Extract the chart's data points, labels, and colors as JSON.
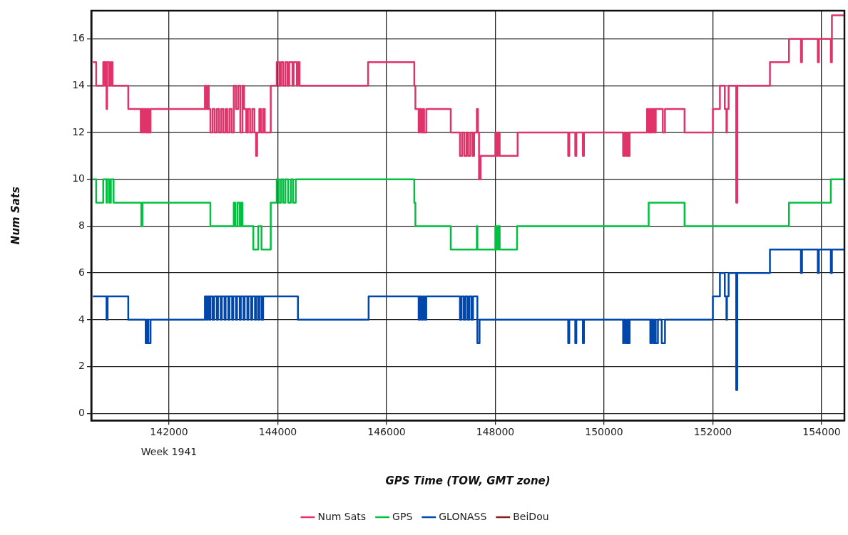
{
  "chart_data": {
    "type": "step",
    "xlabel": "GPS Time (TOW, GMT zone)",
    "ylabel": "Num Sats",
    "annotations": [
      "Week 1941"
    ],
    "xlim": [
      140570,
      154420
    ],
    "xticks": [
      142000,
      144000,
      146000,
      148000,
      150000,
      152000,
      154000
    ],
    "ylim": [
      -0.3,
      17.2
    ],
    "yticks": [
      0,
      2,
      4,
      6,
      8,
      10,
      12,
      14,
      16
    ],
    "grid": true,
    "legend": "bottom",
    "line_style": "solid",
    "marker": "none",
    "series": [
      {
        "name": "Num Sats",
        "color": "#e0336a",
        "x": [
          140600,
          140660,
          140790,
          140820,
          140830,
          140850,
          140860,
          140900,
          140930,
          140960,
          141250,
          141480,
          141500,
          141530,
          141550,
          141580,
          141610,
          141630,
          141660,
          142660,
          142680,
          142710,
          142730,
          142760,
          142800,
          142840,
          142880,
          142920,
          142960,
          143000,
          143040,
          143070,
          143110,
          143150,
          143190,
          143230,
          143270,
          143310,
          143350,
          143380,
          143420,
          143450,
          143490,
          143530,
          143570,
          143600,
          143620,
          143660,
          143690,
          143730,
          143760,
          143870,
          143980,
          144030,
          144060,
          144100,
          144140,
          144180,
          144210,
          144270,
          144290,
          144350,
          144370,
          144400,
          145660,
          146510,
          146530,
          146590,
          146610,
          146640,
          146670,
          146690,
          146730,
          147180,
          147350,
          147390,
          147430,
          147470,
          147500,
          147540,
          147580,
          147610,
          147660,
          147680,
          147700,
          147730,
          148000,
          148030,
          148050,
          148080,
          148410,
          149340,
          149360,
          149470,
          149490,
          149610,
          149630,
          150350,
          150370,
          150400,
          150430,
          150450,
          150470,
          150790,
          150820,
          150850,
          150870,
          150900,
          150930,
          150950,
          151080,
          151120,
          151480,
          152000,
          152130,
          152220,
          152250,
          152260,
          152290,
          152430,
          152450,
          153050,
          153400,
          153620,
          153640,
          153930,
          153950,
          154170,
          154190,
          154410
        ],
        "values": [
          15,
          14,
          15,
          14,
          15,
          13,
          15,
          14,
          15,
          14,
          13,
          12,
          13,
          12,
          13,
          12,
          13,
          12,
          13,
          14,
          13,
          14,
          13,
          12,
          13,
          12,
          13,
          12,
          13,
          12,
          13,
          12,
          13,
          12,
          14,
          13,
          14,
          12,
          14,
          13,
          12,
          13,
          12,
          13,
          12,
          11,
          12,
          13,
          12,
          13,
          12,
          14,
          15,
          14,
          15,
          14,
          15,
          14,
          15,
          14,
          15,
          14,
          15,
          14,
          15,
          14,
          13,
          12,
          13,
          12,
          13,
          12,
          13,
          12,
          11,
          12,
          11,
          12,
          11,
          12,
          11,
          12,
          13,
          12,
          10,
          11,
          12,
          11,
          12,
          11,
          12,
          11,
          12,
          11,
          12,
          11,
          12,
          11,
          12,
          11,
          12,
          11,
          12,
          13,
          12,
          13,
          12,
          13,
          12,
          13,
          12,
          13,
          12,
          13,
          14,
          13,
          12,
          13,
          14,
          9,
          14,
          15,
          16,
          15,
          16,
          15,
          16,
          15,
          17,
          17
        ]
      },
      {
        "name": "GPS",
        "color": "#00c040",
        "x": [
          140600,
          140660,
          140790,
          140850,
          140860,
          140900,
          140930,
          140980,
          141490,
          141510,
          142760,
          143190,
          143220,
          143260,
          143300,
          143320,
          143350,
          143550,
          143640,
          143700,
          143870,
          143980,
          144020,
          144060,
          144100,
          144140,
          144190,
          144240,
          144280,
          144330,
          146510,
          146530,
          147180,
          147660,
          147670,
          148000,
          148030,
          148050,
          148080,
          148400,
          150820,
          151480,
          153400,
          154170,
          154410
        ],
        "values": [
          10,
          9,
          10,
          9,
          10,
          9,
          10,
          9,
          8,
          9,
          8,
          9,
          8,
          9,
          8,
          9,
          8,
          7,
          8,
          7,
          9,
          10,
          9,
          10,
          9,
          10,
          9,
          10,
          9,
          10,
          9,
          8,
          7,
          8,
          7,
          8,
          7,
          8,
          7,
          8,
          9,
          8,
          9,
          10,
          10
        ]
      },
      {
        "name": "GLONASS",
        "color": "#0047ab",
        "x": [
          140600,
          140850,
          140870,
          141250,
          141570,
          141600,
          141620,
          141660,
          142660,
          142690,
          142710,
          142740,
          142760,
          142800,
          142830,
          142880,
          142900,
          142950,
          142970,
          143020,
          143040,
          143090,
          143110,
          143160,
          143180,
          143230,
          143250,
          143300,
          143320,
          143370,
          143390,
          143440,
          143460,
          143510,
          143530,
          143580,
          143600,
          143640,
          143660,
          143700,
          143730,
          144370,
          145670,
          146590,
          146610,
          146640,
          146670,
          146700,
          146730,
          147350,
          147380,
          147420,
          147450,
          147490,
          147520,
          147560,
          147590,
          147610,
          147670,
          147710,
          149340,
          149360,
          149470,
          149490,
          149610,
          149630,
          150350,
          150370,
          150400,
          150430,
          150450,
          150470,
          150850,
          150870,
          150900,
          150930,
          150950,
          150990,
          151060,
          151120,
          152000,
          152130,
          152220,
          152250,
          152260,
          152290,
          152430,
          152450,
          153050,
          153620,
          153640,
          153930,
          153950,
          154170,
          154190,
          154410
        ],
        "values": [
          5,
          4,
          5,
          4,
          3,
          4,
          3,
          4,
          5,
          4,
          5,
          4,
          5,
          4,
          5,
          4,
          5,
          4,
          5,
          4,
          5,
          4,
          5,
          4,
          5,
          4,
          5,
          4,
          5,
          4,
          5,
          4,
          5,
          4,
          5,
          4,
          5,
          4,
          5,
          4,
          5,
          4,
          5,
          4,
          5,
          4,
          5,
          4,
          5,
          4,
          5,
          4,
          5,
          4,
          5,
          4,
          5,
          5,
          3,
          4,
          3,
          4,
          3,
          4,
          3,
          4,
          3,
          4,
          3,
          4,
          3,
          4,
          3,
          4,
          3,
          4,
          3,
          4,
          3,
          4,
          5,
          6,
          5,
          4,
          5,
          6,
          1,
          6,
          7,
          6,
          7,
          6,
          7,
          6,
          7,
          7
        ]
      },
      {
        "name": "BeiDou",
        "color": "#8b1a1a"
      }
    ]
  }
}
